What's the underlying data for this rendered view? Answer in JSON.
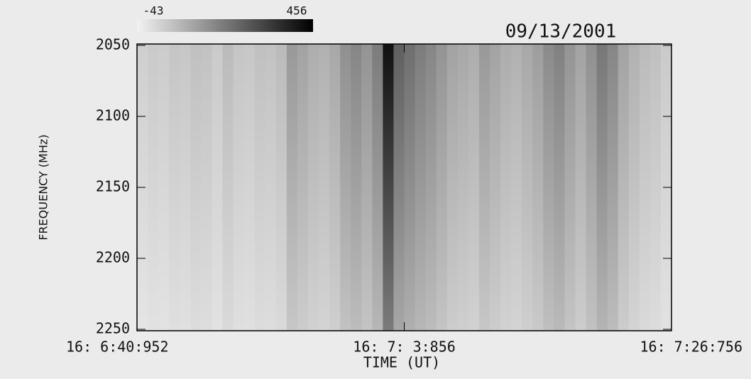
{
  "chart_data": {
    "type": "spectrogram",
    "title": "09/13/2001",
    "y_label": "FREQUENCY (MHz)",
    "x_label": "TIME (UT)",
    "colorbar": {
      "min": -43,
      "max": 456
    },
    "ylim": [
      2050,
      2250
    ],
    "yticks": [
      2050,
      2100,
      2150,
      2200,
      2250
    ],
    "xlim": [
      400.952,
      446.756
    ],
    "xticks": [
      {
        "value": 400.952,
        "label": "16: 6:40:952"
      },
      {
        "value": 423.856,
        "label": "16: 7: 3:856"
      },
      {
        "value": 446.756,
        "label": "16: 7:26:756"
      }
    ],
    "values": [
      30,
      40,
      35,
      50,
      45,
      60,
      55,
      40,
      70,
      50,
      45,
      60,
      55,
      70,
      140,
      120,
      100,
      90,
      110,
      160,
      180,
      150,
      200,
      420,
      260,
      230,
      200,
      180,
      150,
      120,
      110,
      100,
      140,
      120,
      100,
      90,
      110,
      130,
      170,
      190,
      150,
      120,
      160,
      210,
      180,
      120,
      90,
      70,
      60,
      40
    ]
  }
}
